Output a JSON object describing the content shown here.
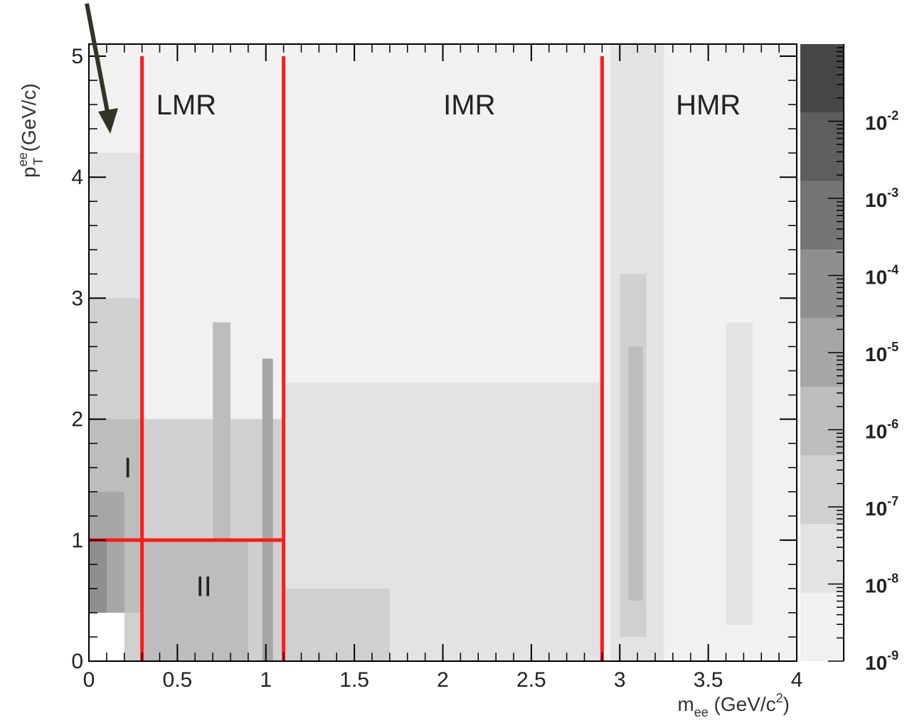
{
  "chart_data": {
    "type": "heatmap",
    "title": "",
    "xlabel": {
      "main": "m",
      "sub": "ee",
      "unit": " (GeV/c",
      "sup": "2",
      "close": ")"
    },
    "ylabel": {
      "main": "p",
      "sup": "ee",
      "sub": "T",
      "unit": " (GeV/c)"
    },
    "xlim": [
      0,
      4
    ],
    "ylim": [
      0,
      5.1
    ],
    "x_ticks": [
      "0",
      "0.5",
      "1",
      "1.5",
      "2",
      "2.5",
      "3",
      "3.5",
      "4"
    ],
    "x_tick_values": [
      0,
      0.5,
      1,
      1.5,
      2,
      2.5,
      3,
      3.5,
      4
    ],
    "y_ticks": [
      "0",
      "1",
      "2",
      "3",
      "4",
      "5"
    ],
    "y_tick_values": [
      0,
      1,
      2,
      3,
      4,
      5
    ],
    "color_scale": {
      "type": "log",
      "range": [
        1e-09,
        0.1
      ],
      "labels": [
        {
          "base": "10",
          "exp": "-9"
        },
        {
          "base": "10",
          "exp": "-8"
        },
        {
          "base": "10",
          "exp": "-7"
        },
        {
          "base": "10",
          "exp": "-6"
        },
        {
          "base": "10",
          "exp": "-5"
        },
        {
          "base": "10",
          "exp": "-4"
        },
        {
          "base": "10",
          "exp": "-3"
        },
        {
          "base": "10",
          "exp": "-2"
        }
      ],
      "label_values": [
        -9,
        -8,
        -7,
        -6,
        -5,
        -4,
        -3,
        -2
      ],
      "colors": [
        "#f1f1f1",
        "#e3e3e3",
        "#d0d0d0",
        "#bdbdbd",
        "#a6a6a6",
        "#8f8f8f",
        "#757575",
        "#5e5e5e",
        "#474747"
      ]
    },
    "region_lines": [
      {
        "x": 0.3,
        "y_from": 0,
        "y_to": 5
      },
      {
        "x": 1.1,
        "y_from": 0,
        "y_to": 5
      },
      {
        "x": 2.9,
        "y_from": 0,
        "y_to": 5
      },
      {
        "y": 1.0,
        "x_from": 0,
        "x_to": 1.1
      }
    ],
    "region_labels": [
      {
        "text": "LMR",
        "x": 0.55,
        "y": 4.6
      },
      {
        "text": "IMR",
        "x": 2.15,
        "y": 4.6
      },
      {
        "text": "HMR",
        "x": 3.5,
        "y": 4.6
      },
      {
        "text": "I",
        "x": 0.22,
        "y": 1.6
      },
      {
        "text": "II",
        "x": 0.65,
        "y": 0.62
      }
    ],
    "density_regions": [
      {
        "x": [
          0,
          4
        ],
        "y": [
          0,
          5.1
        ],
        "level": 1
      },
      {
        "x": [
          0.3,
          1.1
        ],
        "y": [
          0,
          5
        ],
        "level": 1
      },
      {
        "x": [
          0,
          0.3
        ],
        "y": [
          0,
          4.2
        ],
        "level": 2
      },
      {
        "x": [
          1.1,
          2.9
        ],
        "y": [
          0,
          2.3
        ],
        "level": 2
      },
      {
        "x": [
          0,
          0.3
        ],
        "y": [
          0,
          3.0
        ],
        "level": 3
      },
      {
        "x": [
          0.3,
          1.1
        ],
        "y": [
          0,
          2.0
        ],
        "level": 3
      },
      {
        "x": [
          1.1,
          1.7
        ],
        "y": [
          0,
          0.6
        ],
        "level": 3
      },
      {
        "x": [
          0,
          0.3
        ],
        "y": [
          0.4,
          2.0
        ],
        "level": 4
      },
      {
        "x": [
          0.3,
          0.9
        ],
        "y": [
          0,
          1.0
        ],
        "level": 4
      },
      {
        "x": [
          0,
          0.2
        ],
        "y": [
          0.4,
          1.4
        ],
        "level": 5
      },
      {
        "x": [
          0,
          0.1
        ],
        "y": [
          0.4,
          1.0
        ],
        "level": 6
      },
      {
        "x": [
          0.7,
          0.8
        ],
        "y": [
          0,
          2.8
        ],
        "level": 4
      },
      {
        "x": [
          0.98,
          1.04
        ],
        "y": [
          0,
          2.5
        ],
        "level": 5
      },
      {
        "x": [
          2.95,
          3.25
        ],
        "y": [
          0,
          5.1
        ],
        "level": 2
      },
      {
        "x": [
          3.0,
          3.15
        ],
        "y": [
          0.2,
          3.2
        ],
        "level": 3
      },
      {
        "x": [
          3.05,
          3.13
        ],
        "y": [
          0.5,
          2.6
        ],
        "level": 4
      },
      {
        "x": [
          3.6,
          3.75
        ],
        "y": [
          0.3,
          2.8
        ],
        "level": 2
      },
      {
        "x": [
          0,
          0.2
        ],
        "y": [
          0,
          0.4
        ],
        "level": 0
      }
    ]
  }
}
